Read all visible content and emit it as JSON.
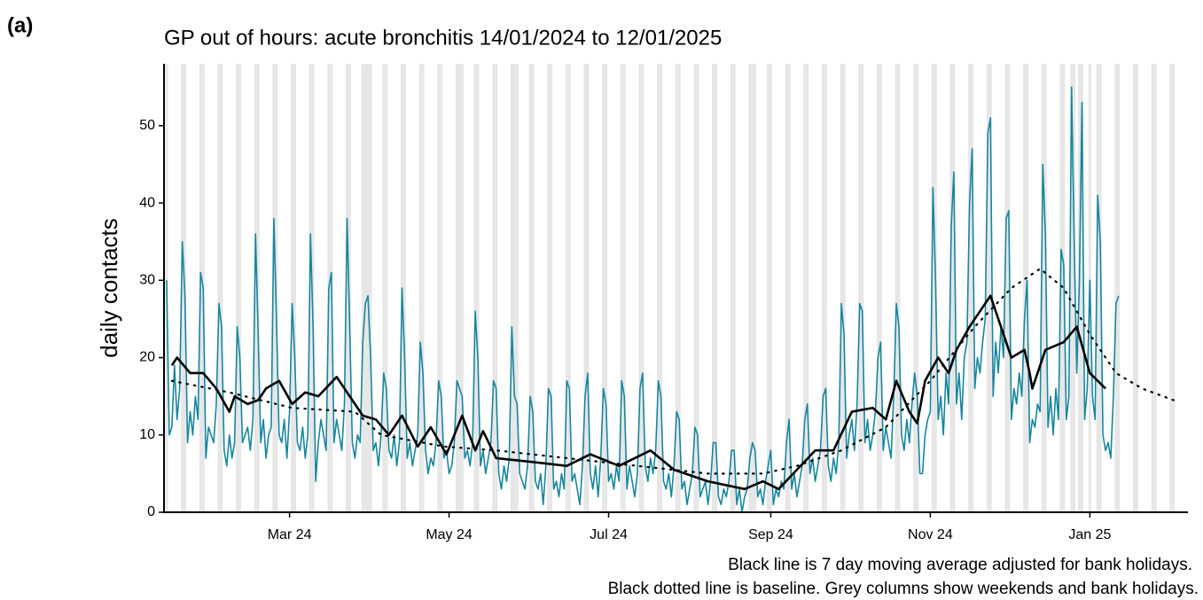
{
  "chart_data": {
    "type": "line",
    "panel_label": "(a)",
    "title": "GP out of hours: acute bronchitis 14/01/2024 to 12/01/2025",
    "y_label": "daily contacts",
    "notes": [
      "Black line is 7 day moving average adjusted for bank holidays.",
      "Black dotted line is baseline. Grey columns show weekends and bank holidays."
    ],
    "xlim": [
      -1,
      390.5
    ],
    "ylim": [
      0,
      58
    ],
    "yticks": [
      0,
      10,
      20,
      30,
      40,
      50
    ],
    "xticks": [
      {
        "value": 47,
        "label": "Mar 24"
      },
      {
        "value": 108,
        "label": "May 24"
      },
      {
        "value": 169,
        "label": "Jul 24"
      },
      {
        "value": 231,
        "label": "Sep 24"
      },
      {
        "value": 292,
        "label": "Nov 24"
      },
      {
        "value": 353,
        "label": "Jan 25"
      }
    ],
    "shade_color": "#e6e6e6",
    "shaded_days": [
      0,
      6,
      7,
      13,
      14,
      20,
      21,
      27,
      28,
      34,
      35,
      41,
      42,
      48,
      49,
      55,
      56,
      62,
      63,
      69,
      70,
      75,
      76,
      77,
      78,
      83,
      84,
      90,
      91,
      97,
      98,
      104,
      105,
      111,
      112,
      113,
      118,
      119,
      125,
      126,
      132,
      133,
      134,
      139,
      140,
      146,
      147,
      153,
      154,
      160,
      161,
      167,
      168,
      174,
      175,
      181,
      182,
      188,
      189,
      195,
      196,
      202,
      203,
      209,
      210,
      216,
      217,
      223,
      224,
      225,
      230,
      231,
      237,
      238,
      244,
      245,
      251,
      252,
      258,
      259,
      265,
      266,
      272,
      273,
      279,
      280,
      286,
      287,
      293,
      294,
      300,
      301,
      307,
      308,
      314,
      315,
      321,
      322,
      328,
      329,
      335,
      336,
      342,
      343,
      346,
      347,
      349,
      350,
      353,
      356,
      357,
      363,
      364,
      370,
      371,
      377,
      378,
      384,
      385,
      391
    ],
    "series": [
      {
        "color": "#17869e",
        "values": [
          30,
          10,
          11,
          19,
          12,
          16,
          35,
          28,
          9,
          13,
          10,
          15,
          12,
          31,
          29,
          7,
          11,
          10,
          9,
          14,
          27,
          24,
          8,
          6,
          10,
          7,
          9,
          24,
          20,
          9,
          10,
          11,
          8,
          12,
          36,
          23,
          9,
          12,
          7,
          10,
          11,
          38,
          25,
          10,
          9,
          12,
          7,
          13,
          27,
          20,
          9,
          8,
          11,
          7,
          10,
          36,
          24,
          4,
          9,
          12,
          10,
          8,
          29,
          31,
          9,
          12,
          10,
          8,
          14,
          38,
          24,
          9,
          7,
          10,
          9,
          22,
          27,
          28,
          20,
          8,
          9,
          6,
          10,
          18,
          16,
          8,
          7,
          10,
          6,
          9,
          29,
          20,
          7,
          9,
          6,
          8,
          10,
          22,
          18,
          8,
          5,
          7,
          6,
          9,
          17,
          15,
          7,
          8,
          5,
          6,
          9,
          17,
          16,
          15,
          7,
          8,
          6,
          9,
          26,
          20,
          6,
          8,
          5,
          7,
          9,
          17,
          16,
          5,
          3,
          6,
          4,
          7,
          24,
          15,
          14,
          5,
          4,
          3,
          6,
          15,
          13,
          4,
          3,
          5,
          1,
          6,
          16,
          15,
          3,
          4,
          2,
          5,
          3,
          17,
          16,
          4,
          5,
          3,
          1,
          6,
          15,
          18,
          5,
          3,
          6,
          2,
          7,
          16,
          14,
          4,
          5,
          3,
          6,
          4,
          17,
          15,
          3,
          6,
          4,
          2,
          5,
          16,
          18,
          6,
          4,
          7,
          5,
          8,
          17,
          15,
          4,
          3,
          5,
          2,
          6,
          13,
          12,
          3,
          4,
          1,
          3,
          5,
          11,
          10,
          2,
          3,
          4,
          1,
          4,
          9,
          9,
          2,
          1,
          3,
          2,
          4,
          8,
          8,
          1,
          3,
          0,
          2,
          3,
          7,
          9,
          8,
          2,
          3,
          1,
          4,
          6,
          8,
          1,
          3,
          2,
          4,
          3,
          9,
          12,
          3,
          5,
          2,
          4,
          6,
          12,
          14,
          5,
          7,
          4,
          6,
          8,
          15,
          16,
          6,
          4,
          7,
          5,
          9,
          27,
          23,
          7,
          10,
          12,
          8,
          14,
          27,
          26,
          9,
          12,
          8,
          10,
          13,
          20,
          22,
          8,
          11,
          9,
          7,
          15,
          27,
          24,
          10,
          8,
          12,
          9,
          14,
          18,
          15,
          5,
          5,
          10,
          12,
          13,
          42,
          30,
          12,
          15,
          10,
          18,
          14,
          37,
          44,
          14,
          18,
          12,
          20,
          22,
          40,
          47,
          16,
          20,
          18,
          22,
          25,
          49,
          51,
          15,
          22,
          18,
          24,
          20,
          38,
          39,
          12,
          16,
          14,
          18,
          15,
          25,
          30,
          9,
          12,
          11,
          14,
          13,
          45,
          36,
          11,
          15,
          10,
          16,
          12,
          34,
          32,
          12,
          15,
          55,
          35,
          18,
          30,
          53,
          12,
          16,
          30,
          15,
          12,
          41,
          35,
          10,
          8,
          9,
          7,
          15,
          27,
          28
        ]
      },
      {
        "color": "#000000",
        "x": [
          2,
          4,
          9,
          14,
          19,
          24,
          26,
          31,
          35,
          38,
          43,
          48,
          53,
          58,
          65,
          70,
          75,
          80,
          85,
          90,
          96,
          101,
          107,
          113,
          118,
          121,
          126,
          140,
          153,
          162,
          173,
          185,
          194,
          207,
          221,
          228,
          234,
          241,
          248,
          255,
          262,
          270,
          275,
          279,
          284,
          287,
          290,
          295,
          299,
          302,
          307,
          311,
          315,
          319,
          323,
          328,
          330,
          331,
          336,
          343,
          348,
          353,
          359
        ],
        "values": [
          19,
          20,
          18,
          18,
          16,
          13,
          15,
          14,
          14.5,
          16,
          17,
          14,
          15.5,
          15,
          17.5,
          15,
          12.5,
          12,
          10,
          12.5,
          8.5,
          11,
          7.5,
          12.5,
          8,
          10.5,
          7,
          6.5,
          6,
          7.5,
          6,
          8,
          5.5,
          4,
          3,
          4,
          3,
          5.5,
          8,
          8,
          13,
          13.5,
          12,
          17,
          13,
          11.5,
          17,
          20,
          18,
          21,
          24,
          26,
          28,
          24,
          20,
          21,
          18,
          16,
          21,
          22,
          24,
          18,
          16
        ]
      },
      {
        "color": "#000000",
        "x": [
          2,
          24,
          48,
          72,
          82,
          106,
          126,
          153,
          180,
          207,
          228,
          241,
          258,
          275,
          292,
          309,
          323,
          334,
          343,
          353,
          363,
          373,
          385
        ],
        "values": [
          17,
          15.5,
          13.5,
          13,
          10,
          8.5,
          8,
          7,
          6,
          5,
          5,
          6,
          8,
          11,
          17,
          24,
          29,
          31.5,
          29,
          23,
          18,
          16,
          14.5
        ]
      }
    ]
  }
}
